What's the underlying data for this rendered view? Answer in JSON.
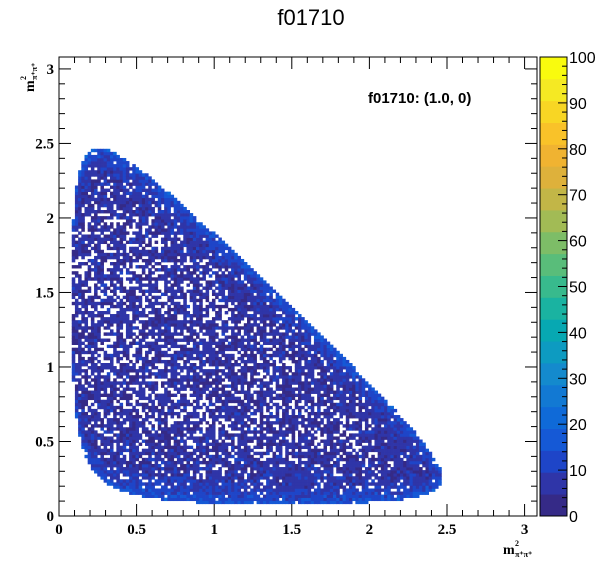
{
  "chart_data": {
    "type": "heatmap",
    "title": "f01710",
    "annotation": "f01710: (1.0, 0)",
    "xlabel": {
      "main": "m",
      "sup": "2",
      "sub": "π⁺π⁺"
    },
    "ylabel": {
      "main": "m",
      "sup": "2",
      "sub": "π⁺π⁺"
    },
    "xlim": [
      0,
      3.08
    ],
    "ylim": [
      0,
      3.08
    ],
    "x_ticks": [
      "0",
      "0.5",
      "1",
      "1.5",
      "2",
      "2.5",
      "3"
    ],
    "y_ticks": [
      "0",
      "0.5",
      "1",
      "1.5",
      "2",
      "2.5",
      "3"
    ],
    "x_tick_values": [
      0,
      0.5,
      1,
      1.5,
      2,
      2.5,
      3
    ],
    "y_tick_values": [
      0,
      0.5,
      1,
      1.5,
      2,
      2.5,
      3
    ],
    "zlim": [
      0,
      100
    ],
    "z_ticks": [
      "0",
      "10",
      "20",
      "30",
      "40",
      "50",
      "60",
      "70",
      "80",
      "90",
      "100"
    ],
    "z_tick_values": [
      0,
      10,
      20,
      30,
      40,
      50,
      60,
      70,
      80,
      90,
      100
    ],
    "palette": [
      "#352a87",
      "#2f35a8",
      "#1e45c8",
      "#1559d6",
      "#0f6ad8",
      "#1279d3",
      "#148acd",
      "#0d9bc1",
      "#07a8b2",
      "#1ab3a1",
      "#38ba8d",
      "#59bd7a",
      "#7dbd67",
      "#a2bb55",
      "#c2b647",
      "#deb13b",
      "#f0b331",
      "#f9c229",
      "#f8d624",
      "#f5e923",
      "#f9fb0e"
    ],
    "grid": false,
    "legend": "colorbar-right"
  }
}
